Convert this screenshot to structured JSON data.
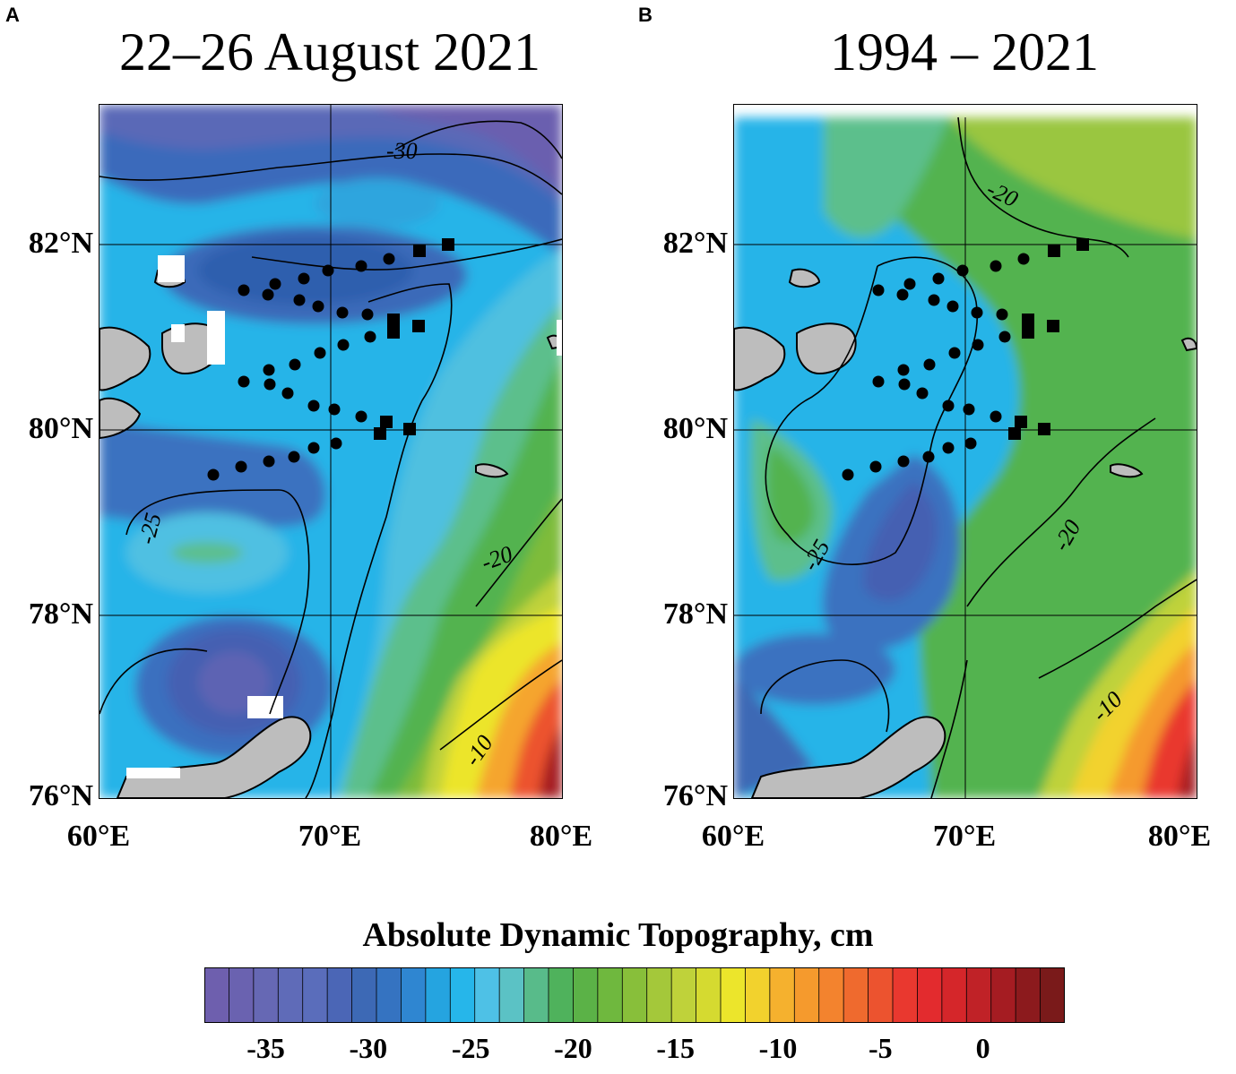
{
  "panels": [
    {
      "letter": "A",
      "title": "22–26 August 2021",
      "contour_labels": [
        "-30",
        "-25",
        "-20",
        "-10"
      ]
    },
    {
      "letter": "B",
      "title": "1994 – 2021",
      "contour_labels": [
        "-20",
        "-25",
        "-20",
        "-10"
      ]
    }
  ],
  "axes": {
    "lat_labels": [
      "82°N",
      "80°N",
      "78°N",
      "76°N"
    ],
    "lon_labels": [
      "60°E",
      "70°E",
      "80°E"
    ]
  },
  "colorbar": {
    "title": "Absolute Dynamic Topography, cm",
    "ticks": [
      "-35",
      "-30",
      "-25",
      "-20",
      "-15",
      "-10",
      "-5",
      "0"
    ],
    "range": [
      -38,
      4
    ],
    "colors": [
      "#6e5fae",
      "#6a62b0",
      "#6668b4",
      "#5f6bb8",
      "#5a6dbb",
      "#4b66b6",
      "#3d69b5",
      "#3573c1",
      "#2f86d1",
      "#25a4e0",
      "#26b6ea",
      "#4ec1e6",
      "#5bc2c5",
      "#58bb8a",
      "#4fb25c",
      "#5bb247",
      "#6fb83e",
      "#88bf3a",
      "#a4c83a",
      "#bfd23a",
      "#d5da30",
      "#ece52b",
      "#f2d22d",
      "#f5b12e",
      "#f59a2d",
      "#f3832e",
      "#ef6a2e",
      "#ec532f",
      "#e9382f",
      "#e32b2e",
      "#d5262a",
      "#c02227",
      "#a51c22",
      "#8c1a1d",
      "#7a1a1a"
    ]
  },
  "stations": {
    "circles": "CTD stations",
    "squares": "moorings"
  }
}
